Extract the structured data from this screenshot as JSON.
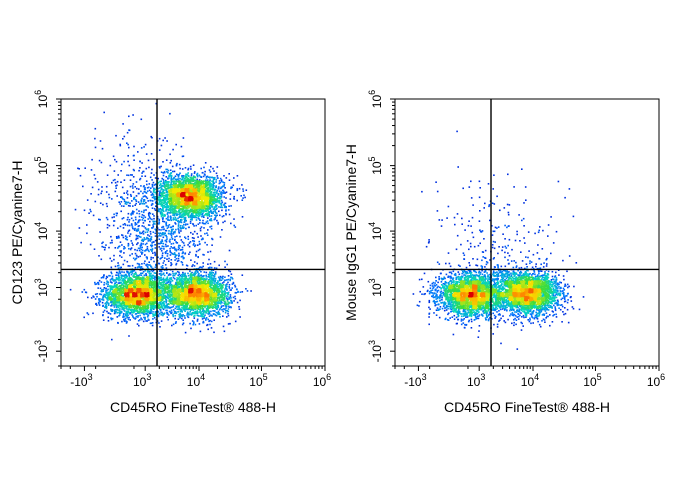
{
  "chart_data": [
    {
      "type": "scatter",
      "subtype": "flow-cytometry-density-dot-plot",
      "xlabel": "CD45RO FineTest® 488-H",
      "ylabel": "CD123 PE/Cyanine7-H",
      "x_scale": "biexponential",
      "y_scale": "biexponential",
      "xlim": [
        -3000,
        1000000
      ],
      "ylim": [
        -2000,
        1000000
      ],
      "x_ticks": [
        {
          "value": -1000,
          "base": "-10",
          "exp": "3"
        },
        {
          "value": 1000,
          "base": "10",
          "exp": "3"
        },
        {
          "value": 10000,
          "base": "10",
          "exp": "4"
        },
        {
          "value": 100000,
          "base": "10",
          "exp": "5"
        },
        {
          "value": 1000000,
          "base": "10",
          "exp": "6"
        }
      ],
      "y_ticks": [
        {
          "value": -1000,
          "base": "-10",
          "exp": "3"
        },
        {
          "value": 1000,
          "base": "10",
          "exp": "3"
        },
        {
          "value": 10000,
          "base": "10",
          "exp": "4"
        },
        {
          "value": 100000,
          "base": "10",
          "exp": "5"
        },
        {
          "value": 1000000,
          "base": "10",
          "exp": "6"
        }
      ],
      "quadrant_gate": {
        "x": 1800,
        "y": 2300
      },
      "populations": [
        {
          "x": 600,
          "y": 700,
          "level": "high"
        },
        {
          "x": 9000,
          "y": 700,
          "level": "high"
        },
        {
          "x": 7000,
          "y": 35000,
          "level": "high"
        },
        {
          "x": 500,
          "y": 45000,
          "level": "low"
        },
        {
          "x": 2000,
          "y": 8000,
          "level": "medium"
        }
      ],
      "grid": false,
      "legend": "none"
    },
    {
      "type": "scatter",
      "subtype": "flow-cytometry-density-dot-plot",
      "xlabel": "CD45RO FineTest® 488-H",
      "ylabel": "Mouse IgG1 PE/Cyanine7-H",
      "x_scale": "biexponential",
      "y_scale": "biexponential",
      "xlim": [
        -3000,
        1000000
      ],
      "ylim": [
        -2000,
        1000000
      ],
      "x_ticks": [
        {
          "value": -1000,
          "base": "-10",
          "exp": "3"
        },
        {
          "value": 1000,
          "base": "10",
          "exp": "3"
        },
        {
          "value": 10000,
          "base": "10",
          "exp": "4"
        },
        {
          "value": 100000,
          "base": "10",
          "exp": "5"
        },
        {
          "value": 1000000,
          "base": "10",
          "exp": "6"
        }
      ],
      "y_ticks": [
        {
          "value": -1000,
          "base": "-10",
          "exp": "3"
        },
        {
          "value": 1000,
          "base": "10",
          "exp": "3"
        },
        {
          "value": 10000,
          "base": "10",
          "exp": "4"
        },
        {
          "value": 100000,
          "base": "10",
          "exp": "5"
        },
        {
          "value": 1000000,
          "base": "10",
          "exp": "6"
        }
      ],
      "quadrant_gate": {
        "x": 1800,
        "y": 2300
      },
      "populations": [
        {
          "x": 600,
          "y": 700,
          "level": "high"
        },
        {
          "x": 8000,
          "y": 750,
          "level": "high"
        },
        {
          "x": 2000,
          "y": 5000,
          "level": "low"
        }
      ],
      "grid": false,
      "legend": "none"
    }
  ]
}
